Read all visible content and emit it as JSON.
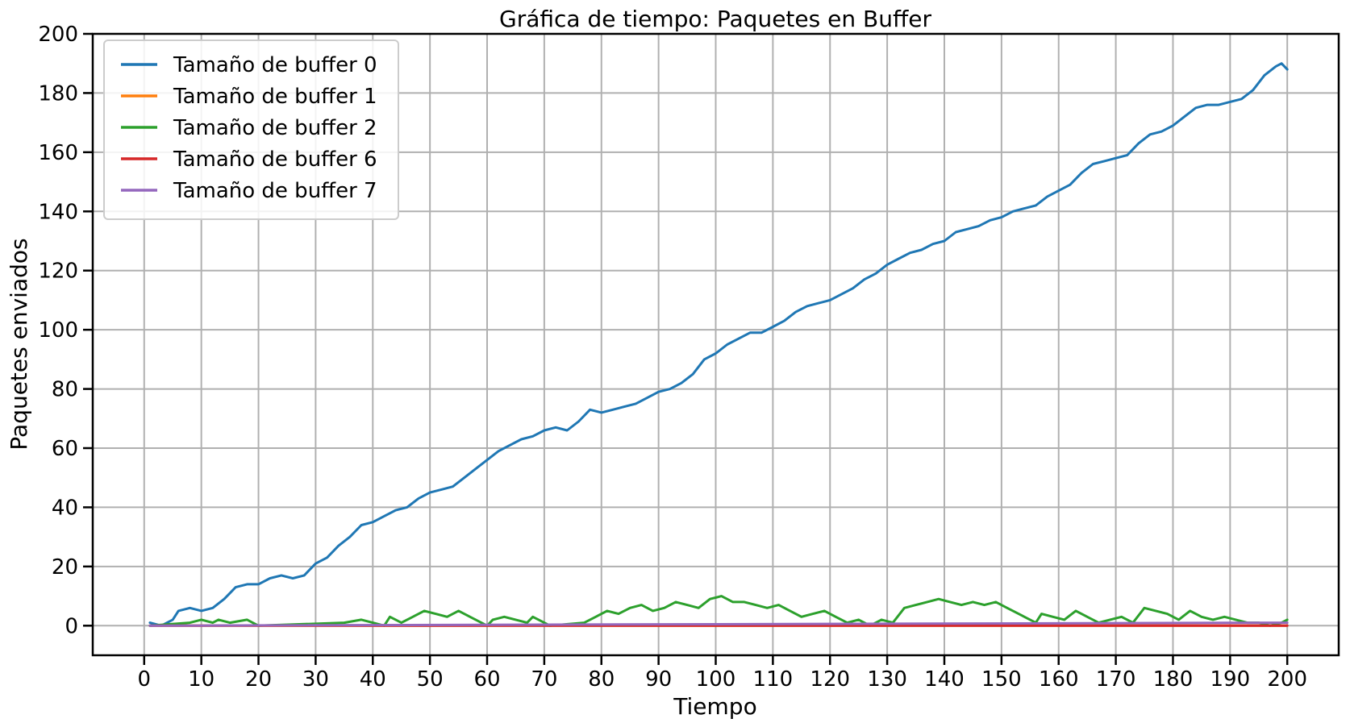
{
  "chart_data": {
    "type": "line",
    "title": "Gráfica de tiempo: Paquetes en Buffer",
    "xlabel": "Tiempo",
    "ylabel": "Paquetes enviados",
    "xlim": [
      -9,
      209
    ],
    "ylim": [
      -10,
      200
    ],
    "xticks": [
      0,
      10,
      20,
      30,
      40,
      50,
      60,
      70,
      80,
      90,
      100,
      110,
      120,
      130,
      140,
      150,
      160,
      170,
      180,
      190,
      200
    ],
    "yticks": [
      0,
      20,
      40,
      60,
      80,
      100,
      120,
      140,
      160,
      180,
      200
    ],
    "grid": true,
    "legend_position": "top-left",
    "series": [
      {
        "name": "Tamaño de buffer 0",
        "color": "#1f77b4",
        "points": [
          [
            1,
            1
          ],
          [
            3,
            0
          ],
          [
            5,
            2
          ],
          [
            6,
            5
          ],
          [
            8,
            6
          ],
          [
            10,
            5
          ],
          [
            12,
            6
          ],
          [
            14,
            9
          ],
          [
            15,
            11
          ],
          [
            16,
            13
          ],
          [
            18,
            14
          ],
          [
            20,
            14
          ],
          [
            22,
            16
          ],
          [
            24,
            17
          ],
          [
            26,
            16
          ],
          [
            28,
            17
          ],
          [
            30,
            21
          ],
          [
            32,
            23
          ],
          [
            34,
            27
          ],
          [
            36,
            30
          ],
          [
            38,
            34
          ],
          [
            40,
            35
          ],
          [
            42,
            37
          ],
          [
            44,
            39
          ],
          [
            46,
            40
          ],
          [
            48,
            43
          ],
          [
            50,
            45
          ],
          [
            52,
            46
          ],
          [
            54,
            47
          ],
          [
            56,
            50
          ],
          [
            58,
            53
          ],
          [
            60,
            56
          ],
          [
            62,
            59
          ],
          [
            64,
            61
          ],
          [
            66,
            63
          ],
          [
            68,
            64
          ],
          [
            70,
            66
          ],
          [
            72,
            67
          ],
          [
            74,
            66
          ],
          [
            76,
            69
          ],
          [
            78,
            73
          ],
          [
            80,
            72
          ],
          [
            82,
            73
          ],
          [
            84,
            74
          ],
          [
            86,
            75
          ],
          [
            88,
            77
          ],
          [
            90,
            79
          ],
          [
            92,
            80
          ],
          [
            94,
            82
          ],
          [
            96,
            85
          ],
          [
            98,
            90
          ],
          [
            100,
            92
          ],
          [
            102,
            95
          ],
          [
            104,
            97
          ],
          [
            106,
            99
          ],
          [
            108,
            99
          ],
          [
            110,
            101
          ],
          [
            112,
            103
          ],
          [
            114,
            106
          ],
          [
            116,
            108
          ],
          [
            118,
            109
          ],
          [
            120,
            110
          ],
          [
            122,
            112
          ],
          [
            124,
            114
          ],
          [
            126,
            117
          ],
          [
            128,
            119
          ],
          [
            130,
            122
          ],
          [
            132,
            124
          ],
          [
            134,
            126
          ],
          [
            136,
            127
          ],
          [
            138,
            129
          ],
          [
            140,
            130
          ],
          [
            142,
            133
          ],
          [
            144,
            134
          ],
          [
            146,
            135
          ],
          [
            148,
            137
          ],
          [
            150,
            138
          ],
          [
            152,
            140
          ],
          [
            154,
            141
          ],
          [
            156,
            142
          ],
          [
            158,
            145
          ],
          [
            160,
            147
          ],
          [
            162,
            149
          ],
          [
            164,
            153
          ],
          [
            166,
            156
          ],
          [
            168,
            157
          ],
          [
            170,
            158
          ],
          [
            172,
            159
          ],
          [
            174,
            163
          ],
          [
            176,
            166
          ],
          [
            178,
            167
          ],
          [
            180,
            169
          ],
          [
            182,
            172
          ],
          [
            184,
            175
          ],
          [
            186,
            176
          ],
          [
            188,
            176
          ],
          [
            190,
            177
          ],
          [
            192,
            178
          ],
          [
            194,
            181
          ],
          [
            196,
            186
          ],
          [
            198,
            189
          ],
          [
            199,
            190
          ],
          [
            200,
            188
          ]
        ]
      },
      {
        "name": "Tamaño de buffer 1",
        "color": "#ff7f0e",
        "points": [
          [
            1,
            0
          ],
          [
            200,
            0
          ]
        ]
      },
      {
        "name": "Tamaño de buffer 2",
        "color": "#2ca02c",
        "points": [
          [
            1,
            0
          ],
          [
            8,
            1
          ],
          [
            10,
            2
          ],
          [
            12,
            1
          ],
          [
            13,
            2
          ],
          [
            15,
            1
          ],
          [
            18,
            2
          ],
          [
            20,
            0
          ],
          [
            35,
            1
          ],
          [
            38,
            2
          ],
          [
            40,
            1
          ],
          [
            42,
            0
          ],
          [
            43,
            3
          ],
          [
            45,
            1
          ],
          [
            47,
            3
          ],
          [
            49,
            5
          ],
          [
            51,
            4
          ],
          [
            53,
            3
          ],
          [
            55,
            5
          ],
          [
            57,
            3
          ],
          [
            59,
            1
          ],
          [
            60,
            0
          ],
          [
            61,
            2
          ],
          [
            63,
            3
          ],
          [
            65,
            2
          ],
          [
            67,
            1
          ],
          [
            68,
            3
          ],
          [
            70,
            1
          ],
          [
            71,
            0
          ],
          [
            77,
            1
          ],
          [
            79,
            3
          ],
          [
            81,
            5
          ],
          [
            83,
            4
          ],
          [
            85,
            6
          ],
          [
            87,
            7
          ],
          [
            89,
            5
          ],
          [
            91,
            6
          ],
          [
            93,
            8
          ],
          [
            95,
            7
          ],
          [
            97,
            6
          ],
          [
            99,
            9
          ],
          [
            101,
            10
          ],
          [
            103,
            8
          ],
          [
            105,
            8
          ],
          [
            107,
            7
          ],
          [
            109,
            6
          ],
          [
            111,
            7
          ],
          [
            113,
            5
          ],
          [
            115,
            3
          ],
          [
            117,
            4
          ],
          [
            119,
            5
          ],
          [
            121,
            3
          ],
          [
            123,
            1
          ],
          [
            125,
            2
          ],
          [
            127,
            0
          ],
          [
            129,
            2
          ],
          [
            131,
            1
          ],
          [
            133,
            6
          ],
          [
            135,
            7
          ],
          [
            137,
            8
          ],
          [
            139,
            9
          ],
          [
            141,
            8
          ],
          [
            143,
            7
          ],
          [
            145,
            8
          ],
          [
            147,
            7
          ],
          [
            149,
            8
          ],
          [
            151,
            6
          ],
          [
            153,
            4
          ],
          [
            155,
            2
          ],
          [
            156,
            1
          ],
          [
            157,
            4
          ],
          [
            159,
            3
          ],
          [
            161,
            2
          ],
          [
            163,
            5
          ],
          [
            165,
            3
          ],
          [
            167,
            1
          ],
          [
            169,
            2
          ],
          [
            171,
            3
          ],
          [
            173,
            1
          ],
          [
            175,
            6
          ],
          [
            177,
            5
          ],
          [
            179,
            4
          ],
          [
            181,
            2
          ],
          [
            183,
            5
          ],
          [
            185,
            3
          ],
          [
            187,
            2
          ],
          [
            189,
            3
          ],
          [
            191,
            2
          ],
          [
            193,
            1
          ],
          [
            195,
            1
          ],
          [
            197,
            0
          ],
          [
            199,
            1
          ],
          [
            200,
            2
          ]
        ]
      },
      {
        "name": "Tamaño de buffer 6",
        "color": "#d62728",
        "points": [
          [
            1,
            0
          ],
          [
            200,
            0
          ]
        ]
      },
      {
        "name": "Tamaño de buffer 7",
        "color": "#9467bd",
        "points": [
          [
            1,
            0
          ],
          [
            200,
            1
          ]
        ]
      }
    ]
  }
}
